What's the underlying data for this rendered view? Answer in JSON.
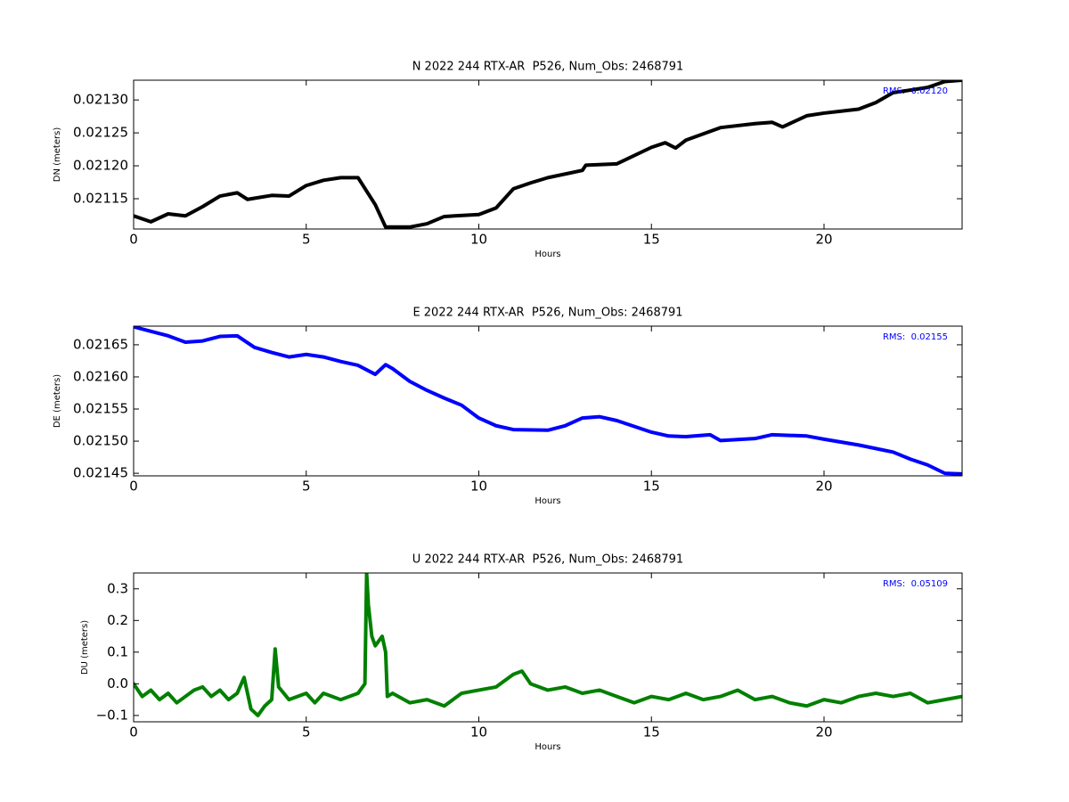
{
  "chart_data": [
    {
      "type": "line",
      "title": "N 2022 244 RTX-AR  P526, Num_Obs: 2468791",
      "x_label": "Hours",
      "y_label": "DN (meters)",
      "annotation": "RMS:  0.02120",
      "annotation_color": "#0000ff",
      "color": "#000000",
      "x": [
        0,
        0.5,
        1,
        1.5,
        2,
        2.5,
        3,
        3.3,
        4,
        4.5,
        5,
        5.5,
        6,
        6.5,
        7,
        7.3,
        8,
        8.5,
        9,
        10,
        10.5,
        11,
        11.5,
        12,
        13,
        13.1,
        14,
        15,
        15.4,
        15.7,
        16,
        17,
        18,
        18.5,
        18.8,
        19.5,
        20,
        21,
        21.5,
        22,
        23,
        23.5,
        24
      ],
      "values": [
        0.021124,
        0.021115,
        0.021127,
        0.021124,
        0.021138,
        0.021154,
        0.021159,
        0.021149,
        0.021155,
        0.021154,
        0.02117,
        0.021178,
        0.021182,
        0.021182,
        0.021141,
        0.021107,
        0.021107,
        0.021112,
        0.021123,
        0.021126,
        0.021136,
        0.021165,
        0.021174,
        0.021182,
        0.021193,
        0.021201,
        0.021203,
        0.021228,
        0.021235,
        0.021227,
        0.021239,
        0.021258,
        0.021264,
        0.021266,
        0.021259,
        0.021276,
        0.02128,
        0.021286,
        0.021296,
        0.021311,
        0.021319,
        0.021328,
        0.02133
      ],
      "xlim": [
        0,
        24
      ],
      "xticks": [
        0,
        5,
        10,
        15,
        20
      ],
      "ylim": [
        0.021104,
        0.02133
      ],
      "yticks": [
        0.02115,
        {
          "value": 0.0212,
          "label": "0.02120"
        },
        0.02125,
        {
          "value": 0.0213,
          "label": "0.02130"
        }
      ]
    },
    {
      "type": "line",
      "title": "E 2022 244 RTX-AR  P526, Num_Obs: 2468791",
      "x_label": "Hours",
      "y_label": "DE (meters)",
      "annotation": "RMS:  0.02155",
      "annotation_color": "#0000ff",
      "color": "#0000ff",
      "x": [
        0,
        0.5,
        1,
        1.5,
        2,
        2.5,
        3,
        3.5,
        4,
        4.5,
        5,
        5.5,
        6,
        6.5,
        7,
        7.3,
        7.5,
        8,
        8.5,
        9,
        9.5,
        10,
        10.5,
        11,
        12,
        12.5,
        13,
        13.5,
        14,
        15,
        15.5,
        16,
        16.7,
        17,
        18,
        18.5,
        19.5,
        20,
        21,
        22,
        22.5,
        23,
        23.5,
        24
      ],
      "values": [
        0.021678,
        0.021671,
        0.021664,
        0.021654,
        0.021656,
        0.021663,
        0.021664,
        0.021646,
        0.021638,
        0.021631,
        0.021635,
        0.021631,
        0.021624,
        0.021618,
        0.021604,
        0.021619,
        0.021613,
        0.021593,
        0.021579,
        0.021567,
        0.021556,
        0.021536,
        0.021524,
        0.021518,
        0.021517,
        0.021524,
        0.021536,
        0.021538,
        0.021532,
        0.021514,
        0.021508,
        0.021507,
        0.02151,
        0.021501,
        0.021504,
        0.02151,
        0.021508,
        0.021503,
        0.021494,
        0.021483,
        0.021472,
        0.021463,
        0.02145,
        0.021449
      ],
      "xlim": [
        0,
        24
      ],
      "xticks": [
        0,
        5,
        10,
        15,
        20
      ],
      "ylim": [
        0.021446,
        0.021679
      ],
      "yticks": [
        0.02145,
        {
          "value": 0.0215,
          "label": "0.02150"
        },
        0.02155,
        {
          "value": 0.0216,
          "label": "0.02160"
        },
        0.02165
      ]
    },
    {
      "type": "line",
      "title": "U 2022 244 RTX-AR  P526, Num_Obs: 2468791",
      "x_label": "Hours",
      "y_label": "DU (meters)",
      "annotation": "RMS:  0.05109",
      "annotation_color": "#0000ff",
      "color": "#008000",
      "x": [
        0,
        0.25,
        0.5,
        0.75,
        1,
        1.25,
        1.5,
        1.75,
        2,
        2.25,
        2.5,
        2.75,
        3,
        3.2,
        3.4,
        3.6,
        3.8,
        4,
        4.1,
        4.2,
        4.5,
        5,
        5.25,
        5.5,
        6,
        6.5,
        6.7,
        6.75,
        6.8,
        6.9,
        7,
        7.2,
        7.3,
        7.35,
        7.5,
        8,
        8.5,
        9,
        9.5,
        10,
        10.5,
        11,
        11.25,
        11.5,
        12,
        12.5,
        13,
        13.5,
        14,
        14.5,
        15,
        15.5,
        16,
        16.5,
        17,
        17.5,
        18,
        18.5,
        19,
        19.5,
        20,
        20.5,
        21,
        21.5,
        22,
        22.5,
        23,
        23.5,
        24
      ],
      "values": [
        0.0,
        -0.04,
        -0.02,
        -0.05,
        -0.03,
        -0.06,
        -0.04,
        -0.02,
        -0.01,
        -0.04,
        -0.02,
        -0.05,
        -0.03,
        0.02,
        -0.08,
        -0.1,
        -0.07,
        -0.05,
        0.11,
        -0.01,
        -0.05,
        -0.03,
        -0.06,
        -0.03,
        -0.05,
        -0.03,
        0.0,
        0.35,
        0.25,
        0.15,
        0.12,
        0.15,
        0.1,
        -0.04,
        -0.03,
        -0.06,
        -0.05,
        -0.07,
        -0.03,
        -0.02,
        -0.01,
        0.03,
        0.04,
        0.0,
        -0.02,
        -0.01,
        -0.03,
        -0.02,
        -0.04,
        -0.06,
        -0.04,
        -0.05,
        -0.03,
        -0.05,
        -0.04,
        -0.02,
        -0.05,
        -0.04,
        -0.06,
        -0.07,
        -0.05,
        -0.06,
        -0.04,
        -0.03,
        -0.04,
        -0.03,
        -0.06,
        -0.05,
        -0.04
      ],
      "xlim": [
        0,
        24
      ],
      "xticks": [
        0,
        5,
        10,
        15,
        20
      ],
      "ylim": [
        -0.12,
        0.35
      ],
      "yticks": [
        {
          "value": -0.1,
          "label": "−0.1"
        },
        {
          "value": 0,
          "label": "0.0"
        },
        0.1,
        0.2,
        0.3
      ]
    }
  ]
}
